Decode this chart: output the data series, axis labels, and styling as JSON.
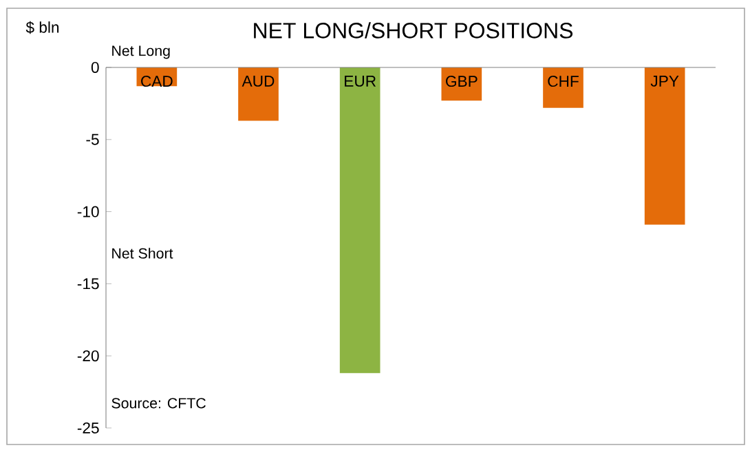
{
  "chart_data": {
    "type": "bar",
    "title": "NET LONG/SHORT POSITIONS",
    "ylabel": "$ bln",
    "categories": [
      "CAD",
      "AUD",
      "EUR",
      "GBP",
      "CHF",
      "JPY"
    ],
    "values": [
      -1.3,
      -3.7,
      -21.2,
      -2.3,
      -2.8,
      -10.9
    ],
    "colors": [
      "#e46c0a",
      "#e46c0a",
      "#8db443",
      "#e46c0a",
      "#e46c0a",
      "#e46c0a"
    ],
    "ylim": [
      -25,
      0
    ],
    "yticks": [
      -25,
      -20,
      -15,
      -10,
      -5,
      0
    ],
    "annotations": [
      "Net Long",
      "Net Short",
      "Source: CFTC"
    ]
  }
}
